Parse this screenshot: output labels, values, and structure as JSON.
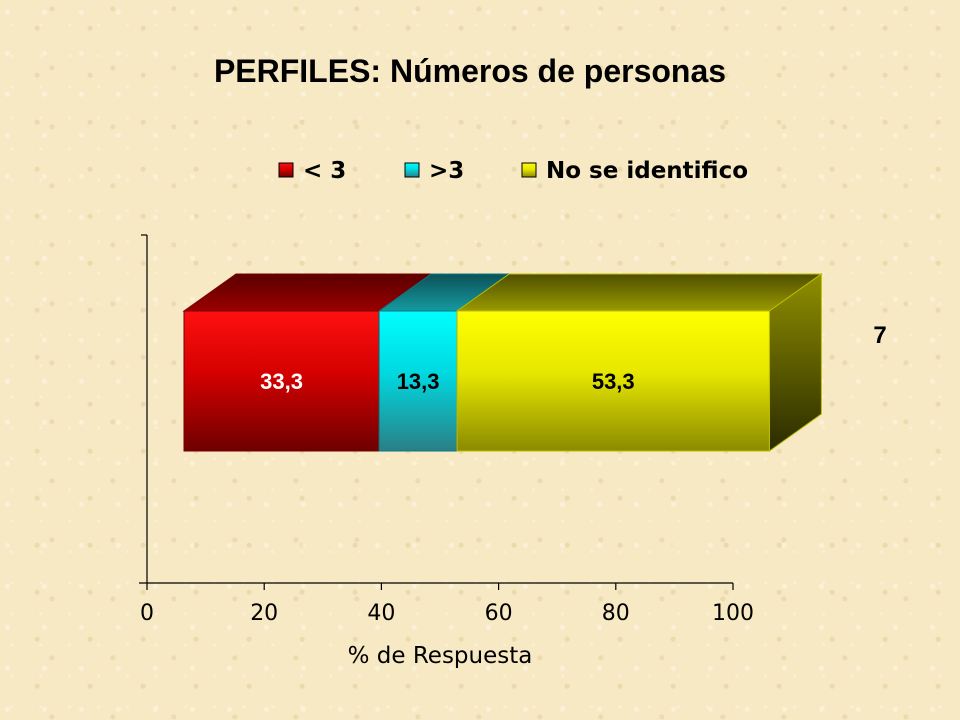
{
  "chart_data": {
    "type": "bar",
    "orientation": "horizontal",
    "stacked": true,
    "three_d": true,
    "title": "PERFILES: Números de personas",
    "xlabel": "% de Respuesta",
    "ylabel": "",
    "xlim": [
      0,
      100
    ],
    "xticks": [
      "0",
      "20",
      "40",
      "60",
      "80",
      "100"
    ],
    "legend_position": "top",
    "categories": [
      "7"
    ],
    "series": [
      {
        "name": "< 3",
        "values": [
          33.3
        ],
        "label": "33,3",
        "color": "#ff0000",
        "label_color": "#ffffff"
      },
      {
        "name": ">3",
        "values": [
          13.3
        ],
        "label": "13,3",
        "color": "#00ffff",
        "label_color": "#000000"
      },
      {
        "name": "No se identifico",
        "values": [
          53.3
        ],
        "label": "53,3",
        "color": "#ffff00",
        "label_color": "#000000"
      }
    ]
  }
}
